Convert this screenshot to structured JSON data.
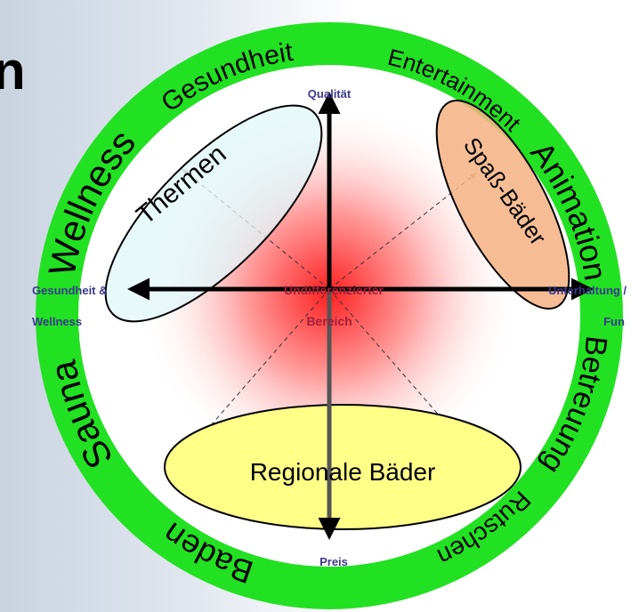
{
  "title_fragment": "n",
  "ring_labels": [
    "Wellness",
    "Gesundheit",
    "Entertainment",
    "Animation",
    "Betreuung",
    "Rutschen",
    "Baden",
    "Sauna"
  ],
  "axes": {
    "top": "Qualität",
    "bottom": "Preis",
    "left": [
      "Gesundheit &",
      "Wellness"
    ],
    "right": [
      "Unterhaltung /",
      "Fun"
    ]
  },
  "center_label": [
    "Undifferenzierter",
    "Bereich"
  ],
  "segments": [
    "Thermen",
    "Spaß-Bäder",
    "Regionale Bäder"
  ]
}
